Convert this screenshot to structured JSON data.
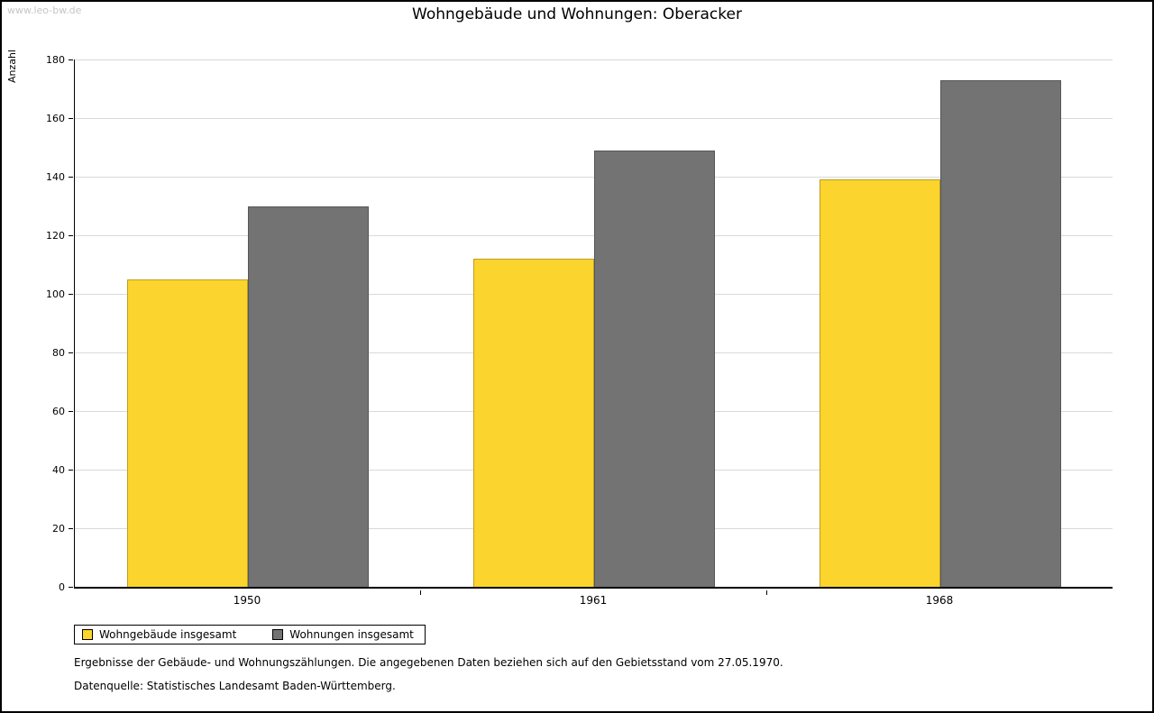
{
  "watermark": "www.leo-bw.de",
  "title": "Wohngebäude und Wohnungen: Oberacker",
  "ylabel": "Anzahl",
  "chart_data": {
    "type": "bar",
    "title": "Wohngebäude und Wohnungen: Oberacker",
    "xlabel": "",
    "ylabel": "Anzahl",
    "categories": [
      "1950",
      "1961",
      "1968"
    ],
    "series": [
      {
        "name": "Wohngebäude insgesamt",
        "color": "#fbd42d",
        "values": [
          105,
          112,
          139
        ]
      },
      {
        "name": "Wohnungen insgesamt",
        "color": "#737373",
        "values": [
          130,
          149,
          173
        ]
      }
    ],
    "ylim": [
      0,
      180
    ],
    "ytick_step": 20,
    "grid": true,
    "legend_position": "bottom-left"
  },
  "footnotes": {
    "line1": "Ergebnisse der Gebäude- und Wohnungszählungen. Die angegebenen Daten beziehen sich auf den Gebietsstand vom 27.05.1970.",
    "line2": "Datenquelle: Statistisches Landesamt Baden-Württemberg."
  }
}
